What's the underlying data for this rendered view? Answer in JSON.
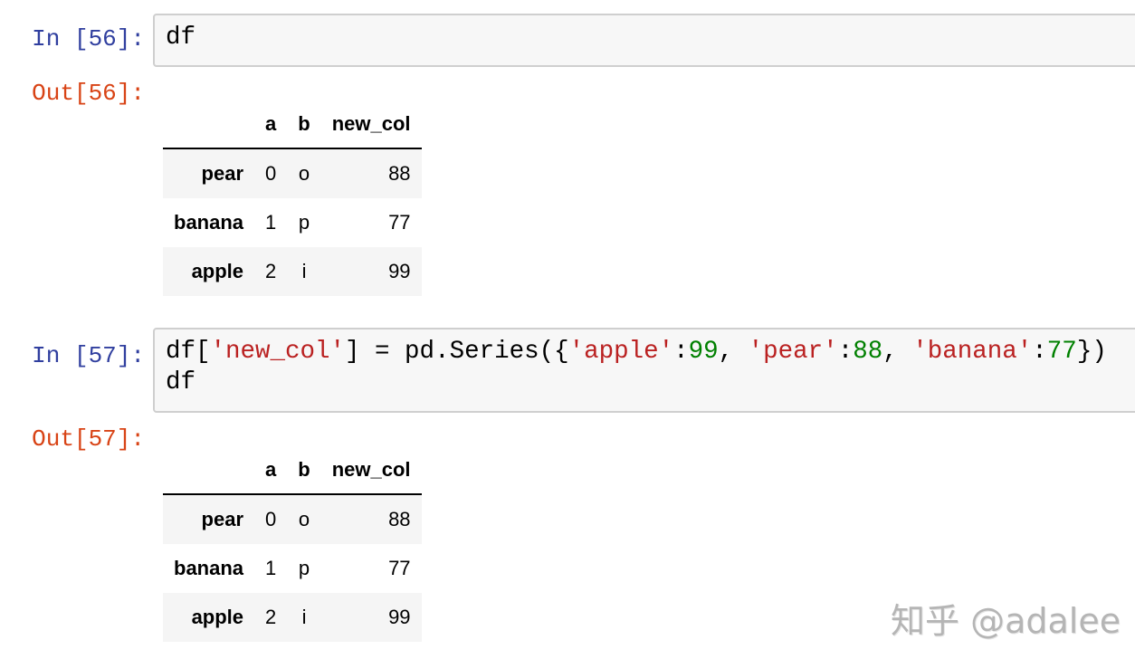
{
  "cells": [
    {
      "in_prompt": "In [56]:",
      "code_lines": [
        [
          "df"
        ]
      ],
      "out_prompt": "Out[56]:",
      "table": {
        "columns": [
          "",
          "a",
          "b",
          "new_col"
        ],
        "rows": [
          {
            "index": "pear",
            "a": "0",
            "b": "o",
            "new_col": "88"
          },
          {
            "index": "banana",
            "a": "1",
            "b": "p",
            "new_col": "77"
          },
          {
            "index": "apple",
            "a": "2",
            "b": "i",
            "new_col": "99"
          }
        ]
      }
    },
    {
      "in_prompt": "In [57]:",
      "code": {
        "t1": "df[",
        "s1": "'new_col'",
        "t2": "] = pd.Series({",
        "s2": "'apple'",
        "t3": ":",
        "n1": "99",
        "t4": ", ",
        "s3": "'pear'",
        "t5": ":",
        "n2": "88",
        "t6": ", ",
        "s4": "'banana'",
        "t7": ":",
        "n3": "77",
        "t8": "})",
        "line2": "df"
      },
      "out_prompt": "Out[57]:",
      "table": {
        "columns": [
          "",
          "a",
          "b",
          "new_col"
        ],
        "rows": [
          {
            "index": "pear",
            "a": "0",
            "b": "o",
            "new_col": "88"
          },
          {
            "index": "banana",
            "a": "1",
            "b": "p",
            "new_col": "77"
          },
          {
            "index": "apple",
            "a": "2",
            "b": "i",
            "new_col": "99"
          }
        ]
      }
    }
  ],
  "watermark": "知乎 @adalee",
  "colors": {
    "in_prompt": "#303f9f",
    "out_prompt": "#d84315",
    "string": "#ba2121",
    "number": "#008000"
  }
}
